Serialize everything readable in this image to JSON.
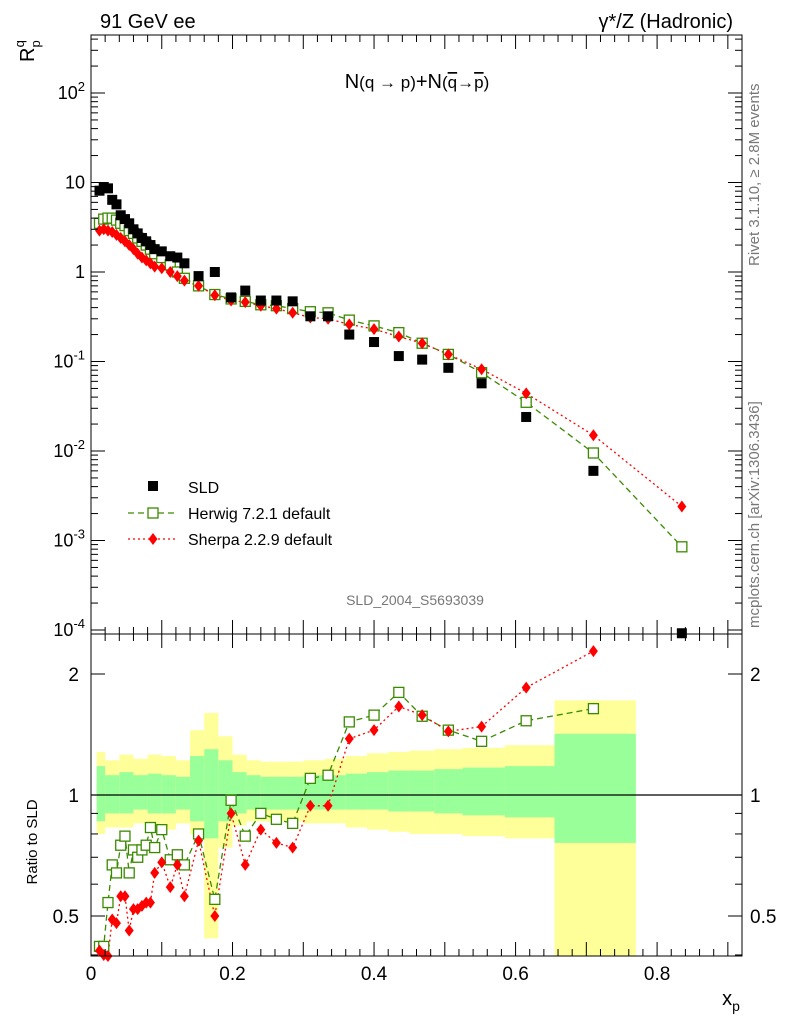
{
  "header": {
    "left": "91 GeV ee",
    "right": "γ*/Z (Hadronic)"
  },
  "side_text": {
    "top": "Rivet 3.1.10, ≥ 2.8M events",
    "bottom": "mcplots.cern.ch [arXiv:1306.3436]"
  },
  "watermark": "SLD_2004_S5693039",
  "colors": {
    "data": "#000000",
    "herwig": "#3a8a00",
    "sherpa": "#ff0000",
    "band_inner": "#99ff99",
    "band_outer": "#ffff99"
  },
  "chart_data": [
    {
      "type": "scatter",
      "panel": "main",
      "title": "N(q→ p)+N(q̄→p̄)",
      "xlabel": "x_p",
      "ylabel": "R_p^q",
      "yscale": "log",
      "xlim": [
        0,
        0.92
      ],
      "ylim": [
        0.0001,
        500
      ],
      "y_tick_labels": [
        "10^-4",
        "10^-3",
        "10^-2",
        "10^-1",
        "1",
        "10",
        "10^2"
      ],
      "legend": {
        "position": "bottom-left",
        "entries": [
          "SLD",
          "Herwig 7.2.1 default",
          "Sherpa 2.2.9 default"
        ]
      },
      "series": [
        {
          "name": "SLD",
          "style": "data",
          "points": [
            [
              0.012,
              8.1
            ],
            [
              0.018,
              8.9
            ],
            [
              0.024,
              8.6
            ],
            [
              0.03,
              6.4
            ],
            [
              0.036,
              5.7
            ],
            [
              0.042,
              4.3
            ],
            [
              0.048,
              3.9
            ],
            [
              0.054,
              3.5
            ],
            [
              0.06,
              3.0
            ],
            [
              0.066,
              2.7
            ],
            [
              0.072,
              2.4
            ],
            [
              0.078,
              2.2
            ],
            [
              0.084,
              2.0
            ],
            [
              0.09,
              1.8
            ],
            [
              0.1,
              1.7
            ],
            [
              0.112,
              1.5
            ],
            [
              0.122,
              1.45
            ],
            [
              0.132,
              1.25
            ],
            [
              0.152,
              0.9
            ],
            [
              0.175,
              1.0
            ],
            [
              0.198,
              0.52
            ],
            [
              0.218,
              0.62
            ],
            [
              0.24,
              0.48
            ],
            [
              0.262,
              0.48
            ],
            [
              0.285,
              0.47
            ],
            [
              0.31,
              0.32
            ],
            [
              0.335,
              0.32
            ],
            [
              0.365,
              0.2
            ],
            [
              0.4,
              0.165
            ],
            [
              0.435,
              0.115
            ],
            [
              0.468,
              0.105
            ],
            [
              0.505,
              0.085
            ],
            [
              0.552,
              0.057
            ],
            [
              0.615,
              0.024
            ],
            [
              0.71,
              0.006
            ],
            [
              0.835,
              9.2e-05
            ]
          ]
        },
        {
          "name": "Herwig 7.2.1 default",
          "style": "dashed",
          "points": [
            [
              0.012,
              3.5
            ],
            [
              0.018,
              3.9
            ],
            [
              0.024,
              4.0
            ],
            [
              0.03,
              4.0
            ],
            [
              0.036,
              3.8
            ],
            [
              0.042,
              3.5
            ],
            [
              0.048,
              3.3
            ],
            [
              0.054,
              2.9
            ],
            [
              0.06,
              2.7
            ],
            [
              0.066,
              2.4
            ],
            [
              0.072,
              2.2
            ],
            [
              0.078,
              2.0
            ],
            [
              0.084,
              1.8
            ],
            [
              0.09,
              1.6
            ],
            [
              0.1,
              1.45
            ],
            [
              0.112,
              1.2
            ],
            [
              0.122,
              1.0
            ],
            [
              0.132,
              0.85
            ],
            [
              0.152,
              0.7
            ],
            [
              0.175,
              0.56
            ],
            [
              0.198,
              0.5
            ],
            [
              0.218,
              0.47
            ],
            [
              0.24,
              0.43
            ],
            [
              0.262,
              0.42
            ],
            [
              0.285,
              0.39
            ],
            [
              0.31,
              0.36
            ],
            [
              0.335,
              0.35
            ],
            [
              0.365,
              0.29
            ],
            [
              0.4,
              0.25
            ],
            [
              0.435,
              0.21
            ],
            [
              0.468,
              0.16
            ],
            [
              0.505,
              0.12
            ],
            [
              0.552,
              0.075
            ],
            [
              0.615,
              0.035
            ],
            [
              0.71,
              0.0095
            ],
            [
              0.835,
              0.00085
            ]
          ]
        },
        {
          "name": "Sherpa 2.2.9 default",
          "style": "dotted",
          "points": [
            [
              0.012,
              2.9
            ],
            [
              0.018,
              3.0
            ],
            [
              0.024,
              2.9
            ],
            [
              0.03,
              2.8
            ],
            [
              0.036,
              2.6
            ],
            [
              0.042,
              2.4
            ],
            [
              0.048,
              2.2
            ],
            [
              0.054,
              2.0
            ],
            [
              0.06,
              1.8
            ],
            [
              0.066,
              1.6
            ],
            [
              0.072,
              1.45
            ],
            [
              0.078,
              1.35
            ],
            [
              0.084,
              1.25
            ],
            [
              0.09,
              1.15
            ],
            [
              0.1,
              1.1
            ],
            [
              0.112,
              1.0
            ],
            [
              0.122,
              0.9
            ],
            [
              0.132,
              0.8
            ],
            [
              0.152,
              0.7
            ],
            [
              0.175,
              0.55
            ],
            [
              0.198,
              0.48
            ],
            [
              0.218,
              0.46
            ],
            [
              0.24,
              0.42
            ],
            [
              0.262,
              0.39
            ],
            [
              0.285,
              0.35
            ],
            [
              0.31,
              0.31
            ],
            [
              0.335,
              0.3
            ],
            [
              0.365,
              0.26
            ],
            [
              0.4,
              0.23
            ],
            [
              0.435,
              0.19
            ],
            [
              0.468,
              0.16
            ],
            [
              0.505,
              0.12
            ],
            [
              0.552,
              0.082
            ],
            [
              0.615,
              0.044
            ],
            [
              0.71,
              0.015
            ],
            [
              0.835,
              0.0024
            ]
          ]
        }
      ]
    },
    {
      "type": "line",
      "panel": "ratio",
      "xlabel": "x_p",
      "ylabel": "Ratio to SLD",
      "xlim": [
        0,
        0.92
      ],
      "ylim": [
        0.35,
        2.3
      ],
      "x_tick_labels": [
        "0",
        "0.2",
        "0.4",
        "0.6",
        "0.8"
      ],
      "y_tick_labels": [
        "0.5",
        "1",
        "2"
      ],
      "reference_line": 1,
      "uncertainty_bands": [
        [
          0.008,
          0.02,
          0.86,
          1.18,
          0.8,
          1.28
        ],
        [
          0.02,
          0.04,
          0.9,
          1.12,
          0.83,
          1.22
        ],
        [
          0.04,
          0.06,
          0.9,
          1.14,
          0.83,
          1.26
        ],
        [
          0.06,
          0.08,
          0.92,
          1.12,
          0.85,
          1.23
        ],
        [
          0.08,
          0.1,
          0.9,
          1.13,
          0.82,
          1.26
        ],
        [
          0.1,
          0.12,
          0.9,
          1.12,
          0.82,
          1.25
        ],
        [
          0.12,
          0.14,
          0.92,
          1.11,
          0.85,
          1.22
        ],
        [
          0.14,
          0.16,
          0.86,
          1.25,
          0.8,
          1.45
        ],
        [
          0.16,
          0.18,
          0.78,
          1.3,
          0.44,
          1.6
        ],
        [
          0.18,
          0.2,
          0.86,
          1.22,
          0.74,
          1.4
        ],
        [
          0.2,
          0.22,
          0.9,
          1.14,
          0.84,
          1.26
        ],
        [
          0.22,
          0.24,
          0.92,
          1.12,
          0.86,
          1.22
        ],
        [
          0.24,
          0.27,
          0.92,
          1.11,
          0.86,
          1.21
        ],
        [
          0.27,
          0.3,
          0.92,
          1.11,
          0.86,
          1.21
        ],
        [
          0.3,
          0.33,
          0.92,
          1.12,
          0.85,
          1.22
        ],
        [
          0.33,
          0.36,
          0.92,
          1.12,
          0.85,
          1.23
        ],
        [
          0.36,
          0.39,
          0.92,
          1.13,
          0.83,
          1.25
        ],
        [
          0.39,
          0.42,
          0.92,
          1.14,
          0.82,
          1.27
        ],
        [
          0.42,
          0.45,
          0.91,
          1.15,
          0.81,
          1.28
        ],
        [
          0.45,
          0.485,
          0.91,
          1.15,
          0.8,
          1.29
        ],
        [
          0.485,
          0.525,
          0.9,
          1.16,
          0.8,
          1.3
        ],
        [
          0.525,
          0.585,
          0.89,
          1.17,
          0.79,
          1.31
        ],
        [
          0.585,
          0.655,
          0.88,
          1.18,
          0.78,
          1.33
        ],
        [
          0.655,
          0.77,
          0.76,
          1.42,
          0.35,
          1.72
        ]
      ],
      "series": [
        {
          "name": "Herwig 7.2.1 default",
          "style": "dashed",
          "x": [
            0.012,
            0.018,
            0.024,
            0.03,
            0.036,
            0.042,
            0.048,
            0.054,
            0.06,
            0.066,
            0.072,
            0.078,
            0.084,
            0.09,
            0.1,
            0.112,
            0.122,
            0.132,
            0.152,
            0.175,
            0.198,
            0.218,
            0.24,
            0.262,
            0.285,
            0.31,
            0.335,
            0.365,
            0.4,
            0.435,
            0.468,
            0.505,
            0.552,
            0.615,
            0.71
          ],
          "values": [
            0.42,
            0.42,
            0.54,
            0.67,
            0.64,
            0.75,
            0.79,
            0.64,
            0.73,
            0.7,
            0.73,
            0.75,
            0.83,
            0.74,
            0.82,
            0.69,
            0.71,
            0.67,
            0.8,
            0.55,
            0.97,
            0.79,
            0.9,
            0.87,
            0.85,
            1.1,
            1.12,
            1.52,
            1.58,
            1.8,
            1.57,
            1.45,
            1.36,
            1.53,
            1.64
          ]
        },
        {
          "name": "Sherpa 2.2.9 default",
          "style": "dotted",
          "x": [
            0.012,
            0.018,
            0.024,
            0.03,
            0.036,
            0.042,
            0.048,
            0.054,
            0.06,
            0.066,
            0.072,
            0.078,
            0.084,
            0.09,
            0.1,
            0.112,
            0.122,
            0.132,
            0.152,
            0.175,
            0.198,
            0.218,
            0.24,
            0.262,
            0.285,
            0.31,
            0.335,
            0.365,
            0.4,
            0.435,
            0.468,
            0.505,
            0.552,
            0.615,
            0.71
          ],
          "values": [
            0.41,
            0.4,
            0.37,
            0.49,
            0.48,
            0.56,
            0.56,
            0.46,
            0.52,
            0.52,
            0.53,
            0.54,
            0.54,
            0.64,
            0.68,
            0.59,
            0.67,
            0.56,
            0.77,
            0.5,
            0.9,
            0.67,
            0.82,
            0.76,
            0.74,
            0.94,
            0.94,
            1.38,
            1.45,
            1.66,
            1.58,
            1.44,
            1.48,
            1.85,
            2.28
          ]
        }
      ]
    }
  ]
}
